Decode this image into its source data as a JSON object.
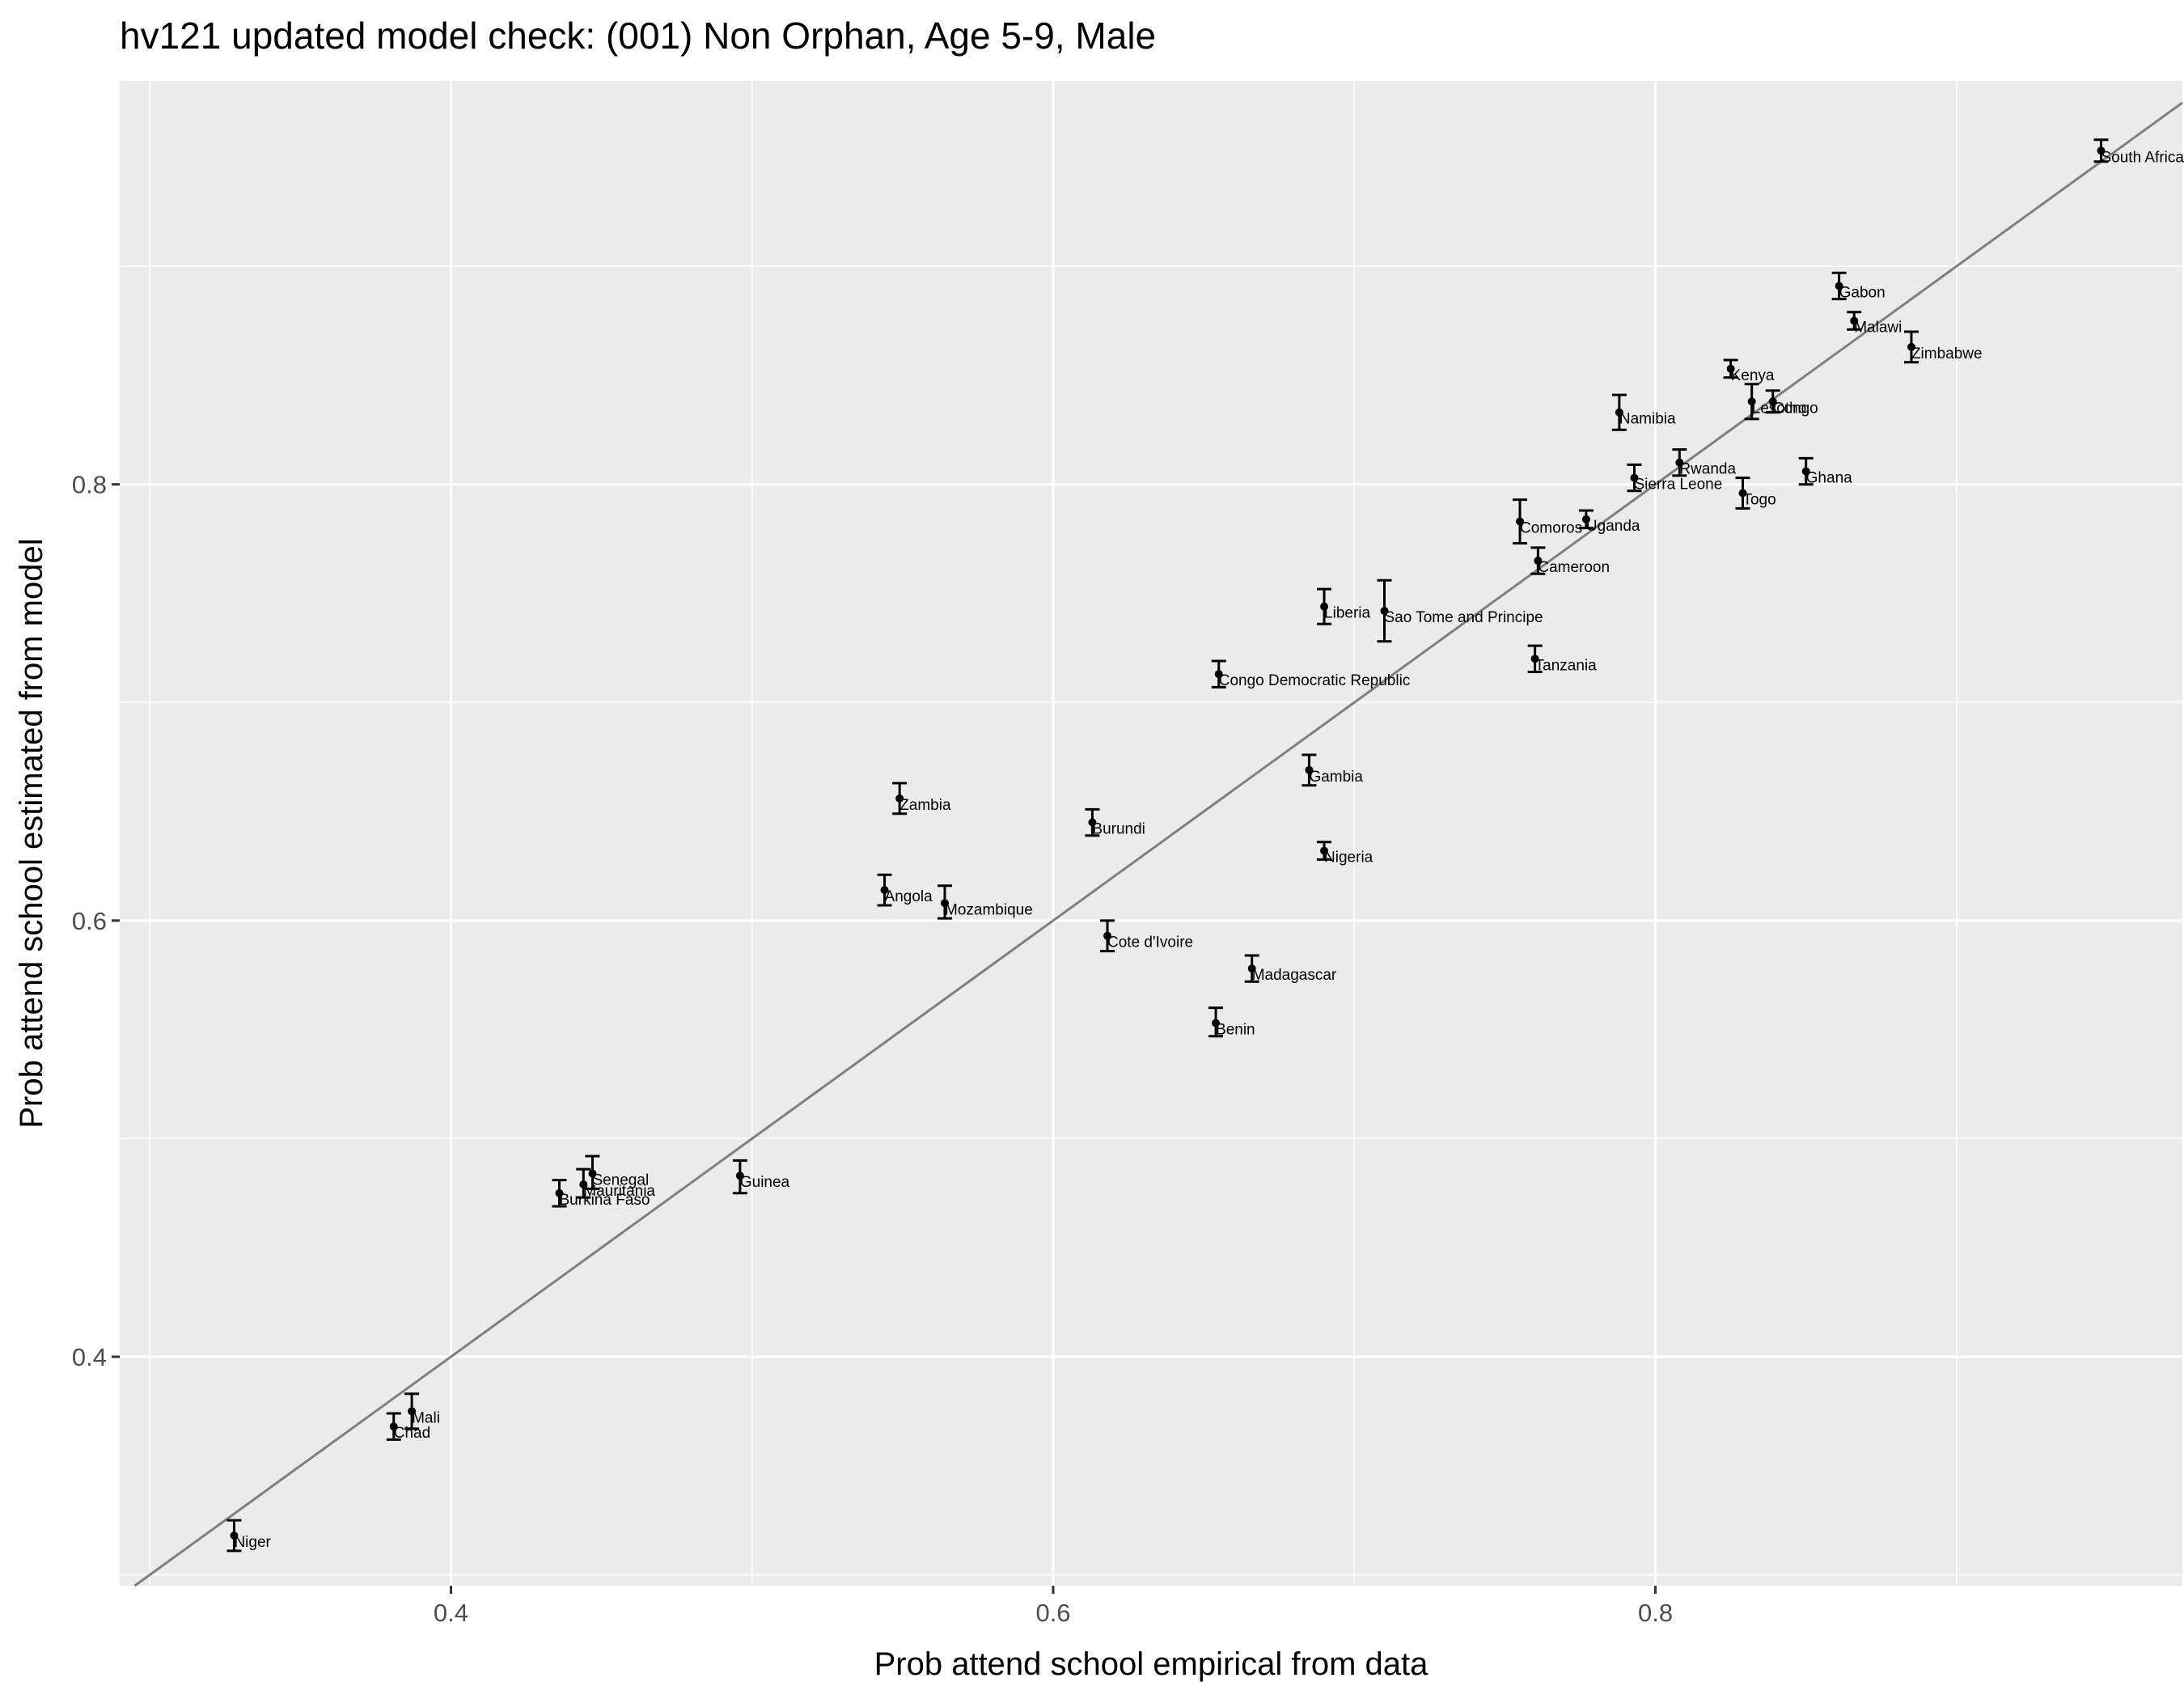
{
  "chart_data": {
    "type": "scatter",
    "title": "hv121 updated model check: (001) Non Orphan, Age 5-9, Male",
    "xlabel": "Prob attend school empirical from data",
    "ylabel": "Prob attend school estimated from model",
    "xlim": [
      0.29,
      0.975
    ],
    "ylim": [
      0.295,
      0.985
    ],
    "x_ticks": [
      0.4,
      0.6,
      0.8
    ],
    "y_ticks": [
      0.4,
      0.6,
      0.8
    ],
    "x_tick_labels": [
      "0.4",
      "0.6",
      "0.8"
    ],
    "y_tick_labels": [
      "0.4",
      "0.6",
      "0.8"
    ],
    "grid": true,
    "panel_background": "#ebebeb",
    "grid_color": "#ffffff",
    "point_color": "#000000",
    "reference_line": {
      "slope": 1,
      "intercept": 0,
      "color": "#7f7f7f"
    },
    "points": [
      {
        "label": "Niger",
        "x": 0.328,
        "y": 0.318,
        "ymin": 0.311,
        "ymax": 0.325
      },
      {
        "label": "Chad",
        "x": 0.381,
        "y": 0.368,
        "ymin": 0.362,
        "ymax": 0.374
      },
      {
        "label": "Mali",
        "x": 0.387,
        "y": 0.375,
        "ymin": 0.367,
        "ymax": 0.383
      },
      {
        "label": "Burkina Faso",
        "x": 0.436,
        "y": 0.475,
        "ymin": 0.469,
        "ymax": 0.481
      },
      {
        "label": "Mauritania",
        "x": 0.444,
        "y": 0.479,
        "ymin": 0.473,
        "ymax": 0.486
      },
      {
        "label": "Senegal",
        "x": 0.447,
        "y": 0.484,
        "ymin": 0.477,
        "ymax": 0.492
      },
      {
        "label": "Guinea",
        "x": 0.496,
        "y": 0.483,
        "ymin": 0.475,
        "ymax": 0.49
      },
      {
        "label": "Angola",
        "x": 0.544,
        "y": 0.614,
        "ymin": 0.607,
        "ymax": 0.621
      },
      {
        "label": "Zambia",
        "x": 0.549,
        "y": 0.656,
        "ymin": 0.649,
        "ymax": 0.663
      },
      {
        "label": "Mozambique",
        "x": 0.564,
        "y": 0.608,
        "ymin": 0.601,
        "ymax": 0.616
      },
      {
        "label": "Burundi",
        "x": 0.613,
        "y": 0.645,
        "ymin": 0.639,
        "ymax": 0.651
      },
      {
        "label": "Cote d'Ivoire",
        "x": 0.618,
        "y": 0.593,
        "ymin": 0.586,
        "ymax": 0.6
      },
      {
        "label": "Benin",
        "x": 0.654,
        "y": 0.553,
        "ymin": 0.547,
        "ymax": 0.56
      },
      {
        "label": "Congo Democratic Republic",
        "x": 0.655,
        "y": 0.713,
        "ymin": 0.707,
        "ymax": 0.719
      },
      {
        "label": "Madagascar",
        "x": 0.666,
        "y": 0.578,
        "ymin": 0.572,
        "ymax": 0.584
      },
      {
        "label": "Gambia",
        "x": 0.685,
        "y": 0.669,
        "ymin": 0.662,
        "ymax": 0.676
      },
      {
        "label": "Nigeria",
        "x": 0.69,
        "y": 0.632,
        "ymin": 0.628,
        "ymax": 0.636
      },
      {
        "label": "Liberia",
        "x": 0.69,
        "y": 0.744,
        "ymin": 0.736,
        "ymax": 0.752
      },
      {
        "label": "Sao Tome and Principe",
        "x": 0.71,
        "y": 0.742,
        "ymin": 0.728,
        "ymax": 0.756
      },
      {
        "label": "Comoros",
        "x": 0.755,
        "y": 0.783,
        "ymin": 0.773,
        "ymax": 0.793
      },
      {
        "label": "Tanzania",
        "x": 0.76,
        "y": 0.72,
        "ymin": 0.714,
        "ymax": 0.726
      },
      {
        "label": "Cameroon",
        "x": 0.761,
        "y": 0.765,
        "ymin": 0.759,
        "ymax": 0.771
      },
      {
        "label": "Uganda",
        "x": 0.777,
        "y": 0.784,
        "ymin": 0.78,
        "ymax": 0.788
      },
      {
        "label": "Namibia",
        "x": 0.788,
        "y": 0.833,
        "ymin": 0.825,
        "ymax": 0.841
      },
      {
        "label": "Sierra Leone",
        "x": 0.793,
        "y": 0.803,
        "ymin": 0.797,
        "ymax": 0.809
      },
      {
        "label": "Rwanda",
        "x": 0.808,
        "y": 0.81,
        "ymin": 0.804,
        "ymax": 0.816
      },
      {
        "label": "Kenya",
        "x": 0.825,
        "y": 0.853,
        "ymin": 0.849,
        "ymax": 0.857
      },
      {
        "label": "Togo",
        "x": 0.829,
        "y": 0.796,
        "ymin": 0.789,
        "ymax": 0.803
      },
      {
        "label": "Lesotho",
        "x": 0.832,
        "y": 0.838,
        "ymin": 0.83,
        "ymax": 0.846
      },
      {
        "label": "Congo",
        "x": 0.839,
        "y": 0.838,
        "ymin": 0.833,
        "ymax": 0.843
      },
      {
        "label": "Ghana",
        "x": 0.85,
        "y": 0.806,
        "ymin": 0.8,
        "ymax": 0.812
      },
      {
        "label": "Gabon",
        "x": 0.861,
        "y": 0.891,
        "ymin": 0.885,
        "ymax": 0.897
      },
      {
        "label": "Malawi",
        "x": 0.866,
        "y": 0.875,
        "ymin": 0.871,
        "ymax": 0.879
      },
      {
        "label": "Zimbabwe",
        "x": 0.885,
        "y": 0.863,
        "ymin": 0.856,
        "ymax": 0.87
      },
      {
        "label": "South Africa",
        "x": 0.948,
        "y": 0.953,
        "ymin": 0.948,
        "ymax": 0.958
      }
    ]
  }
}
